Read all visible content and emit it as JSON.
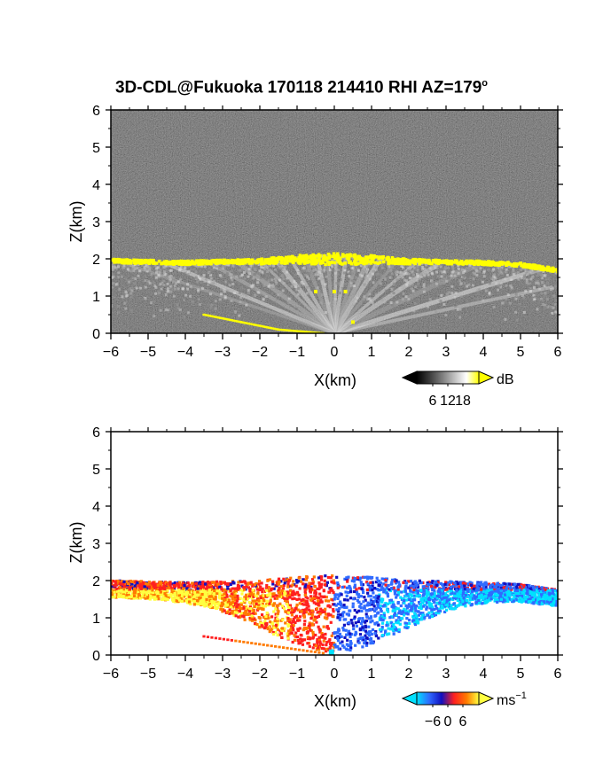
{
  "title": {
    "main": "3D-CDL@Fukuoka 170118 214410 RHI AZ=179",
    "superscript": "o"
  },
  "chart_data": [
    {
      "type": "heatmap",
      "panel": "top",
      "quantity": "backscatter intensity",
      "xlabel": "X(km)",
      "ylabel": "Z(km)",
      "xlim": [
        -6,
        6
      ],
      "ylim": [
        0,
        6
      ],
      "xticks": [
        "-6",
        "-5",
        "-4",
        "-3",
        "-2",
        "-1",
        "0",
        "1",
        "2",
        "3",
        "4",
        "5",
        "6"
      ],
      "yticks": [
        "0",
        "1",
        "2",
        "3",
        "4",
        "5",
        "6"
      ],
      "colorbar": {
        "unit": "dB",
        "tick_labels": [
          "6",
          "12",
          "18"
        ],
        "colors": [
          "#000000",
          "#3a3a3a",
          "#7a7a7a",
          "#bdbdbd",
          "#ffffff",
          "#ffff00"
        ]
      },
      "features": {
        "cloud_base_top_km": [
          {
            "x": -6,
            "z": 1.95
          },
          {
            "x": -4,
            "z": 1.9
          },
          {
            "x": -2,
            "z": 1.95
          },
          {
            "x": -1,
            "z": 2.05
          },
          {
            "x": 0,
            "z": 2.1
          },
          {
            "x": 1,
            "z": 2.05
          },
          {
            "x": 2,
            "z": 1.95
          },
          {
            "x": 4,
            "z": 1.9
          },
          {
            "x": 5,
            "z": 1.85
          },
          {
            "x": 6,
            "z": 1.7
          }
        ],
        "lower_yellow_arc_km": [
          {
            "x": -3.5,
            "z": 0.5
          },
          {
            "x": -2.5,
            "z": 0.3
          },
          {
            "x": -1.5,
            "z": 0.1
          },
          {
            "x": -0.3,
            "z": 0.0
          }
        ],
        "saturated_color": "#ffff00"
      }
    },
    {
      "type": "heatmap",
      "panel": "bottom",
      "quantity": "radial velocity",
      "xlabel": "X(km)",
      "ylabel": "Z(km)",
      "xlim": [
        -6,
        6
      ],
      "ylim": [
        0,
        6
      ],
      "xticks": [
        "-6",
        "-5",
        "-4",
        "-3",
        "-2",
        "-1",
        "0",
        "1",
        "2",
        "3",
        "4",
        "5",
        "6"
      ],
      "yticks": [
        "0",
        "1",
        "2",
        "3",
        "4",
        "5",
        "6"
      ],
      "colorbar": {
        "unit": "ms",
        "unit_exponent": "-1",
        "tick_labels": [
          "-6",
          "0",
          "6"
        ],
        "colors": [
          "#00e0ff",
          "#2f6bff",
          "#1010c0",
          "#ff2020",
          "#ff7a00",
          "#ffff40"
        ]
      },
      "features": {
        "negative_side_sign": "positive (warm colors) for X<0",
        "positive_side_sign": "negative (blue colors) for X>0",
        "echo_top_km": 2.1
      }
    }
  ]
}
